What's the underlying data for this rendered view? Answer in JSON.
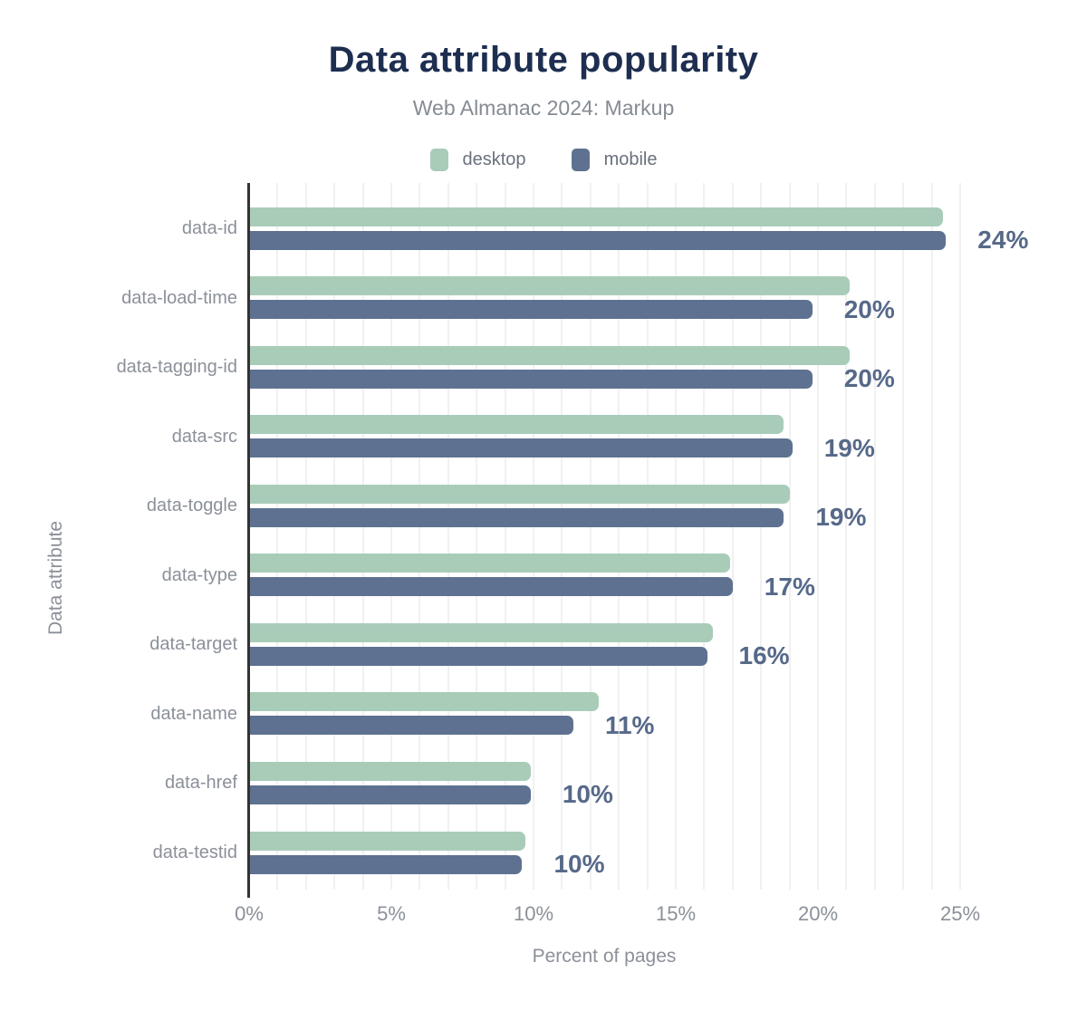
{
  "title": "Data attribute popularity",
  "subtitle": "Web Almanac 2024: Markup",
  "legend": [
    {
      "label": "desktop",
      "color": "#a9ccb9"
    },
    {
      "label": "mobile",
      "color": "#5e7190"
    }
  ],
  "colors": {
    "desktop_bar": "#a9ccb9",
    "mobile_bar": "#5e7190",
    "value_label": "#566989",
    "title_text": "#1d2e50",
    "muted_text": "#8b9099",
    "gridline": "#f1f1f1",
    "axis_line": "#333333"
  },
  "chart_data": {
    "type": "bar",
    "orientation": "horizontal",
    "title": "Data attribute popularity",
    "subtitle": "Web Almanac 2024: Markup",
    "xlabel": "Percent of pages",
    "ylabel": "Data attribute",
    "xlim": [
      0,
      25
    ],
    "grid": "vertical gridlines every 1%",
    "legend_position": "top",
    "categories": [
      "data-id",
      "data-load-time",
      "data-tagging-id",
      "data-src",
      "data-toggle",
      "data-type",
      "data-target",
      "data-name",
      "data-href",
      "data-testid"
    ],
    "series": [
      {
        "name": "desktop",
        "values": [
          24.4,
          21.1,
          21.1,
          18.8,
          19.0,
          16.9,
          16.3,
          12.3,
          9.9,
          9.7
        ]
      },
      {
        "name": "mobile",
        "values": [
          24.5,
          19.8,
          19.8,
          19.1,
          18.8,
          17.0,
          16.1,
          11.4,
          9.9,
          9.6
        ]
      }
    ],
    "value_labels": [
      "24%",
      "20%",
      "20%",
      "19%",
      "19%",
      "17%",
      "16%",
      "11%",
      "10%",
      "10%"
    ],
    "x_ticks": [
      {
        "value": 0,
        "label": "0%"
      },
      {
        "value": 5,
        "label": "5%"
      },
      {
        "value": 10,
        "label": "10%"
      },
      {
        "value": 15,
        "label": "15%"
      },
      {
        "value": 20,
        "label": "20%"
      },
      {
        "value": 25,
        "label": "25%"
      }
    ]
  }
}
